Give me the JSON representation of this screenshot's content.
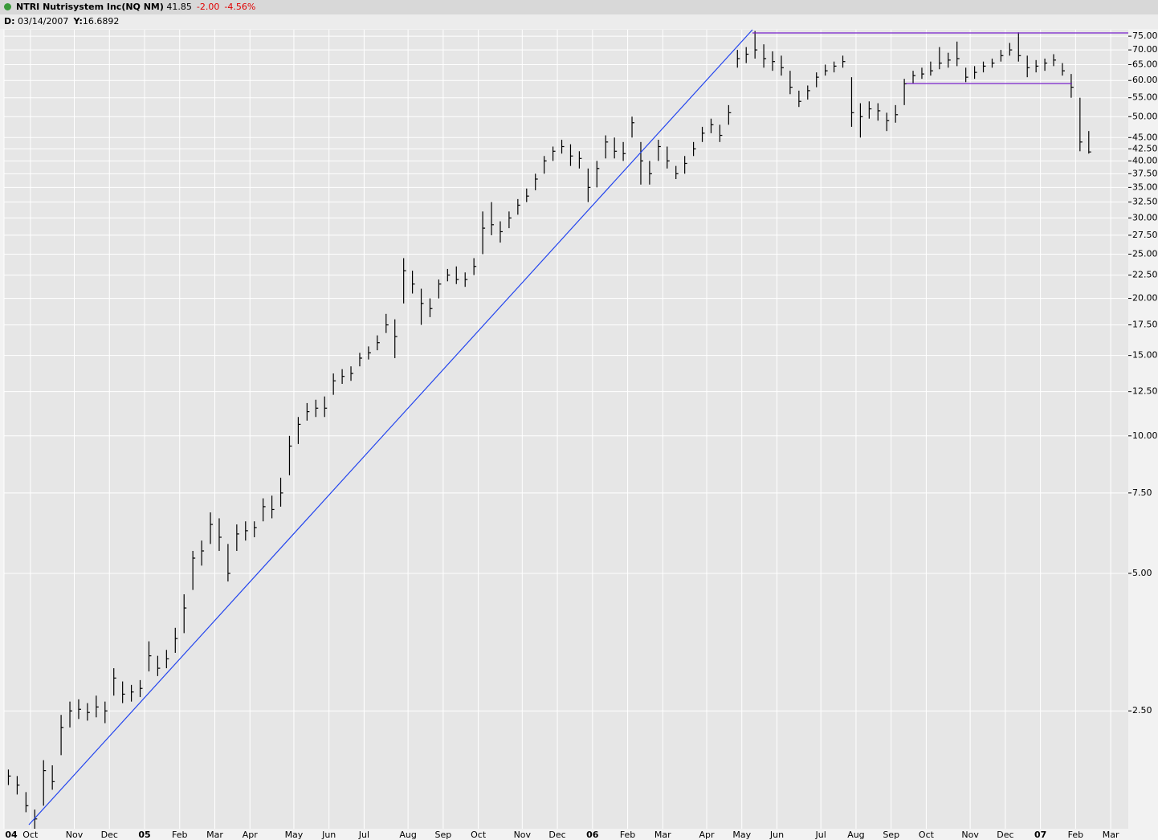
{
  "header": {
    "symbol_name": "NTRI Nutrisystem Inc(NQ NM)",
    "last": "41.85",
    "change": "-2.00",
    "change_pct": "-4.56%",
    "date_label": "D:",
    "date": "03/14/2007",
    "y_label": "Y:",
    "y_value": "16.6892"
  },
  "chart_data": {
    "type": "ohlc",
    "log_scale": true,
    "grid": true,
    "color": "#000000",
    "categories": [
      "04",
      null,
      null,
      "Oct",
      null,
      null,
      null,
      null,
      "Nov",
      null,
      null,
      null,
      "Dec",
      null,
      null,
      null,
      "05",
      null,
      null,
      null,
      "Feb",
      null,
      null,
      null,
      "Mar",
      null,
      null,
      null,
      "Apr",
      null,
      null,
      null,
      null,
      "May",
      null,
      null,
      null,
      "Jun",
      null,
      null,
      null,
      "Jul",
      null,
      null,
      null,
      null,
      "Aug",
      null,
      null,
      null,
      "Sep",
      null,
      null,
      null,
      "Oct",
      null,
      null,
      null,
      null,
      "Nov",
      null,
      null,
      null,
      "Dec",
      null,
      null,
      null,
      "06",
      null,
      null,
      null,
      "Feb",
      null,
      null,
      null,
      "Mar",
      null,
      null,
      null,
      null,
      "Apr",
      null,
      null,
      null,
      "May",
      null,
      null,
      null,
      "Jun",
      null,
      null,
      null,
      null,
      "Jul",
      null,
      null,
      null,
      "Aug",
      null,
      null,
      null,
      "Sep",
      null,
      null,
      null,
      "Oct",
      null,
      null,
      null,
      null,
      "Nov",
      null,
      null,
      null,
      "Dec",
      null,
      null,
      null,
      "07",
      null,
      null,
      null,
      "Feb",
      null,
      null,
      null,
      "Mar",
      null
    ],
    "high": [
      1.86,
      1.8,
      1.66,
      1.52,
      1.95,
      1.9,
      2.45,
      2.62,
      2.65,
      2.6,
      2.7,
      2.62,
      3.1,
      2.9,
      2.85,
      2.92,
      3.55,
      3.3,
      3.4,
      3.8,
      4.5,
      5.6,
      5.9,
      6.8,
      6.6,
      5.8,
      6.4,
      6.5,
      6.5,
      7.3,
      7.4,
      8.1,
      10.0,
      11.0,
      11.8,
      12.0,
      12.2,
      13.7,
      14.0,
      14.2,
      15.2,
      15.7,
      16.6,
      18.5,
      18.0,
      24.5,
      23.0,
      21.0,
      20.0,
      22.0,
      23.2,
      23.5,
      22.8,
      24.5,
      31.0,
      32.5,
      29.5,
      31.0,
      33.0,
      34.8,
      37.5,
      41.0,
      43.0,
      44.5,
      43.5,
      42.0,
      38.5,
      40.0,
      45.5,
      45.0,
      44.0,
      50.0,
      44.0,
      40.0,
      44.5,
      43.0,
      39.0,
      41.0,
      44.0,
      47.5,
      49.5,
      48.0,
      53.0,
      70.0,
      71.0,
      77.0,
      72.0,
      69.5,
      68.0,
      63.0,
      57.0,
      58.5,
      62.5,
      65.0,
      66.0,
      68.0,
      61.0,
      53.5,
      54.0,
      53.5,
      51.0,
      53.0,
      60.5,
      63.0,
      64.0,
      66.0,
      71.0,
      69.0,
      73.0,
      64.0,
      64.5,
      66.0,
      67.0,
      70.0,
      72.5,
      76.5,
      68.0,
      66.5,
      67.0,
      68.5,
      65.5,
      62.0,
      55.0,
      46.5,
      null,
      null,
      null,
      null
    ],
    "low": [
      1.72,
      1.64,
      1.5,
      1.38,
      1.55,
      1.68,
      2.0,
      2.3,
      2.4,
      2.38,
      2.42,
      2.35,
      2.7,
      2.6,
      2.62,
      2.68,
      3.05,
      2.98,
      3.1,
      3.35,
      3.7,
      4.6,
      5.2,
      5.8,
      5.6,
      4.8,
      5.6,
      5.9,
      6.0,
      6.5,
      6.6,
      7.0,
      8.2,
      9.6,
      10.8,
      11.0,
      11.0,
      12.3,
      13.0,
      13.2,
      14.2,
      14.7,
      15.4,
      16.8,
      14.8,
      19.5,
      20.5,
      17.5,
      18.2,
      20.0,
      21.8,
      21.5,
      21.2,
      22.5,
      25.0,
      27.5,
      26.5,
      28.5,
      30.5,
      32.5,
      34.5,
      37.5,
      40.0,
      41.5,
      39.0,
      38.5,
      32.5,
      35.0,
      40.5,
      40.5,
      40.0,
      45.0,
      35.5,
      35.5,
      40.0,
      38.5,
      36.5,
      37.5,
      41.0,
      44.0,
      46.0,
      44.0,
      48.0,
      64.0,
      65.5,
      67.0,
      64.0,
      63.0,
      61.5,
      56.0,
      52.5,
      54.5,
      58.0,
      61.5,
      62.5,
      64.0,
      47.5,
      45.0,
      49.5,
      49.0,
      46.5,
      48.5,
      53.0,
      59.0,
      60.5,
      61.5,
      63.5,
      64.0,
      64.5,
      59.5,
      60.5,
      62.5,
      64.0,
      66.0,
      68.0,
      66.0,
      61.0,
      62.5,
      63.0,
      64.5,
      61.5,
      55.0,
      42.0,
      41.5,
      null,
      null,
      null,
      null
    ],
    "close": [
      1.8,
      1.72,
      1.55,
      1.45,
      1.85,
      1.75,
      2.3,
      2.5,
      2.52,
      2.48,
      2.55,
      2.5,
      2.95,
      2.72,
      2.75,
      2.8,
      3.3,
      3.1,
      3.25,
      3.6,
      4.2,
      5.4,
      5.6,
      6.4,
      6.0,
      5.0,
      6.1,
      6.2,
      6.3,
      7.0,
      6.9,
      7.5,
      9.5,
      10.6,
      11.3,
      11.5,
      11.5,
      13.2,
      13.5,
      13.7,
      14.8,
      15.2,
      16.0,
      17.5,
      16.5,
      23.0,
      21.5,
      19.5,
      19.0,
      21.5,
      22.5,
      22.0,
      22.0,
      23.5,
      28.5,
      29.0,
      28.0,
      30.0,
      32.0,
      33.5,
      36.5,
      40.0,
      42.0,
      43.0,
      41.0,
      40.5,
      35.0,
      38.5,
      44.0,
      42.0,
      41.5,
      48.5,
      40.0,
      37.5,
      43.0,
      40.0,
      37.5,
      39.5,
      42.5,
      46.0,
      48.0,
      45.5,
      51.0,
      67.0,
      68.5,
      70.0,
      67.0,
      66.0,
      64.0,
      58.0,
      54.0,
      57.0,
      61.0,
      63.0,
      64.5,
      66.0,
      51.0,
      50.0,
      52.0,
      51.5,
      49.0,
      50.5,
      59.0,
      61.5,
      62.0,
      63.0,
      65.5,
      66.5,
      67.0,
      61.0,
      62.5,
      64.5,
      65.5,
      68.0,
      70.0,
      68.0,
      64.0,
      64.5,
      65.5,
      66.5,
      63.0,
      58.0,
      44.0,
      41.85,
      null,
      null,
      null,
      null
    ],
    "ylim": [
      1.38,
      77.5
    ],
    "yticks": [
      {
        "value": 75,
        "label": "75.00"
      },
      {
        "value": 70,
        "label": "70.00"
      },
      {
        "value": 65,
        "label": "65.00"
      },
      {
        "value": 60,
        "label": "60.00"
      },
      {
        "value": 55,
        "label": "55.00"
      },
      {
        "value": 50,
        "label": "50.00"
      },
      {
        "value": 45,
        "label": "45.00"
      },
      {
        "value": 42.5,
        "label": "42.50"
      },
      {
        "value": 40,
        "label": "40.00"
      },
      {
        "value": 37.5,
        "label": "37.50"
      },
      {
        "value": 35,
        "label": "35.00"
      },
      {
        "value": 32.5,
        "label": "32.50"
      },
      {
        "value": 30,
        "label": "30.00"
      },
      {
        "value": 27.5,
        "label": "27.50"
      },
      {
        "value": 25,
        "label": "25.00"
      },
      {
        "value": 22.5,
        "label": "22.50"
      },
      {
        "value": 20,
        "label": "20.00"
      },
      {
        "value": 17.5,
        "label": "17.50"
      },
      {
        "value": 15,
        "label": "15.00"
      },
      {
        "value": 12.5,
        "label": "12.50"
      },
      {
        "value": 10,
        "label": "10.00"
      },
      {
        "value": 7.5,
        "label": "7.50"
      },
      {
        "value": 5,
        "label": "5.00"
      },
      {
        "value": 2.5,
        "label": "2.50"
      }
    ]
  }
}
